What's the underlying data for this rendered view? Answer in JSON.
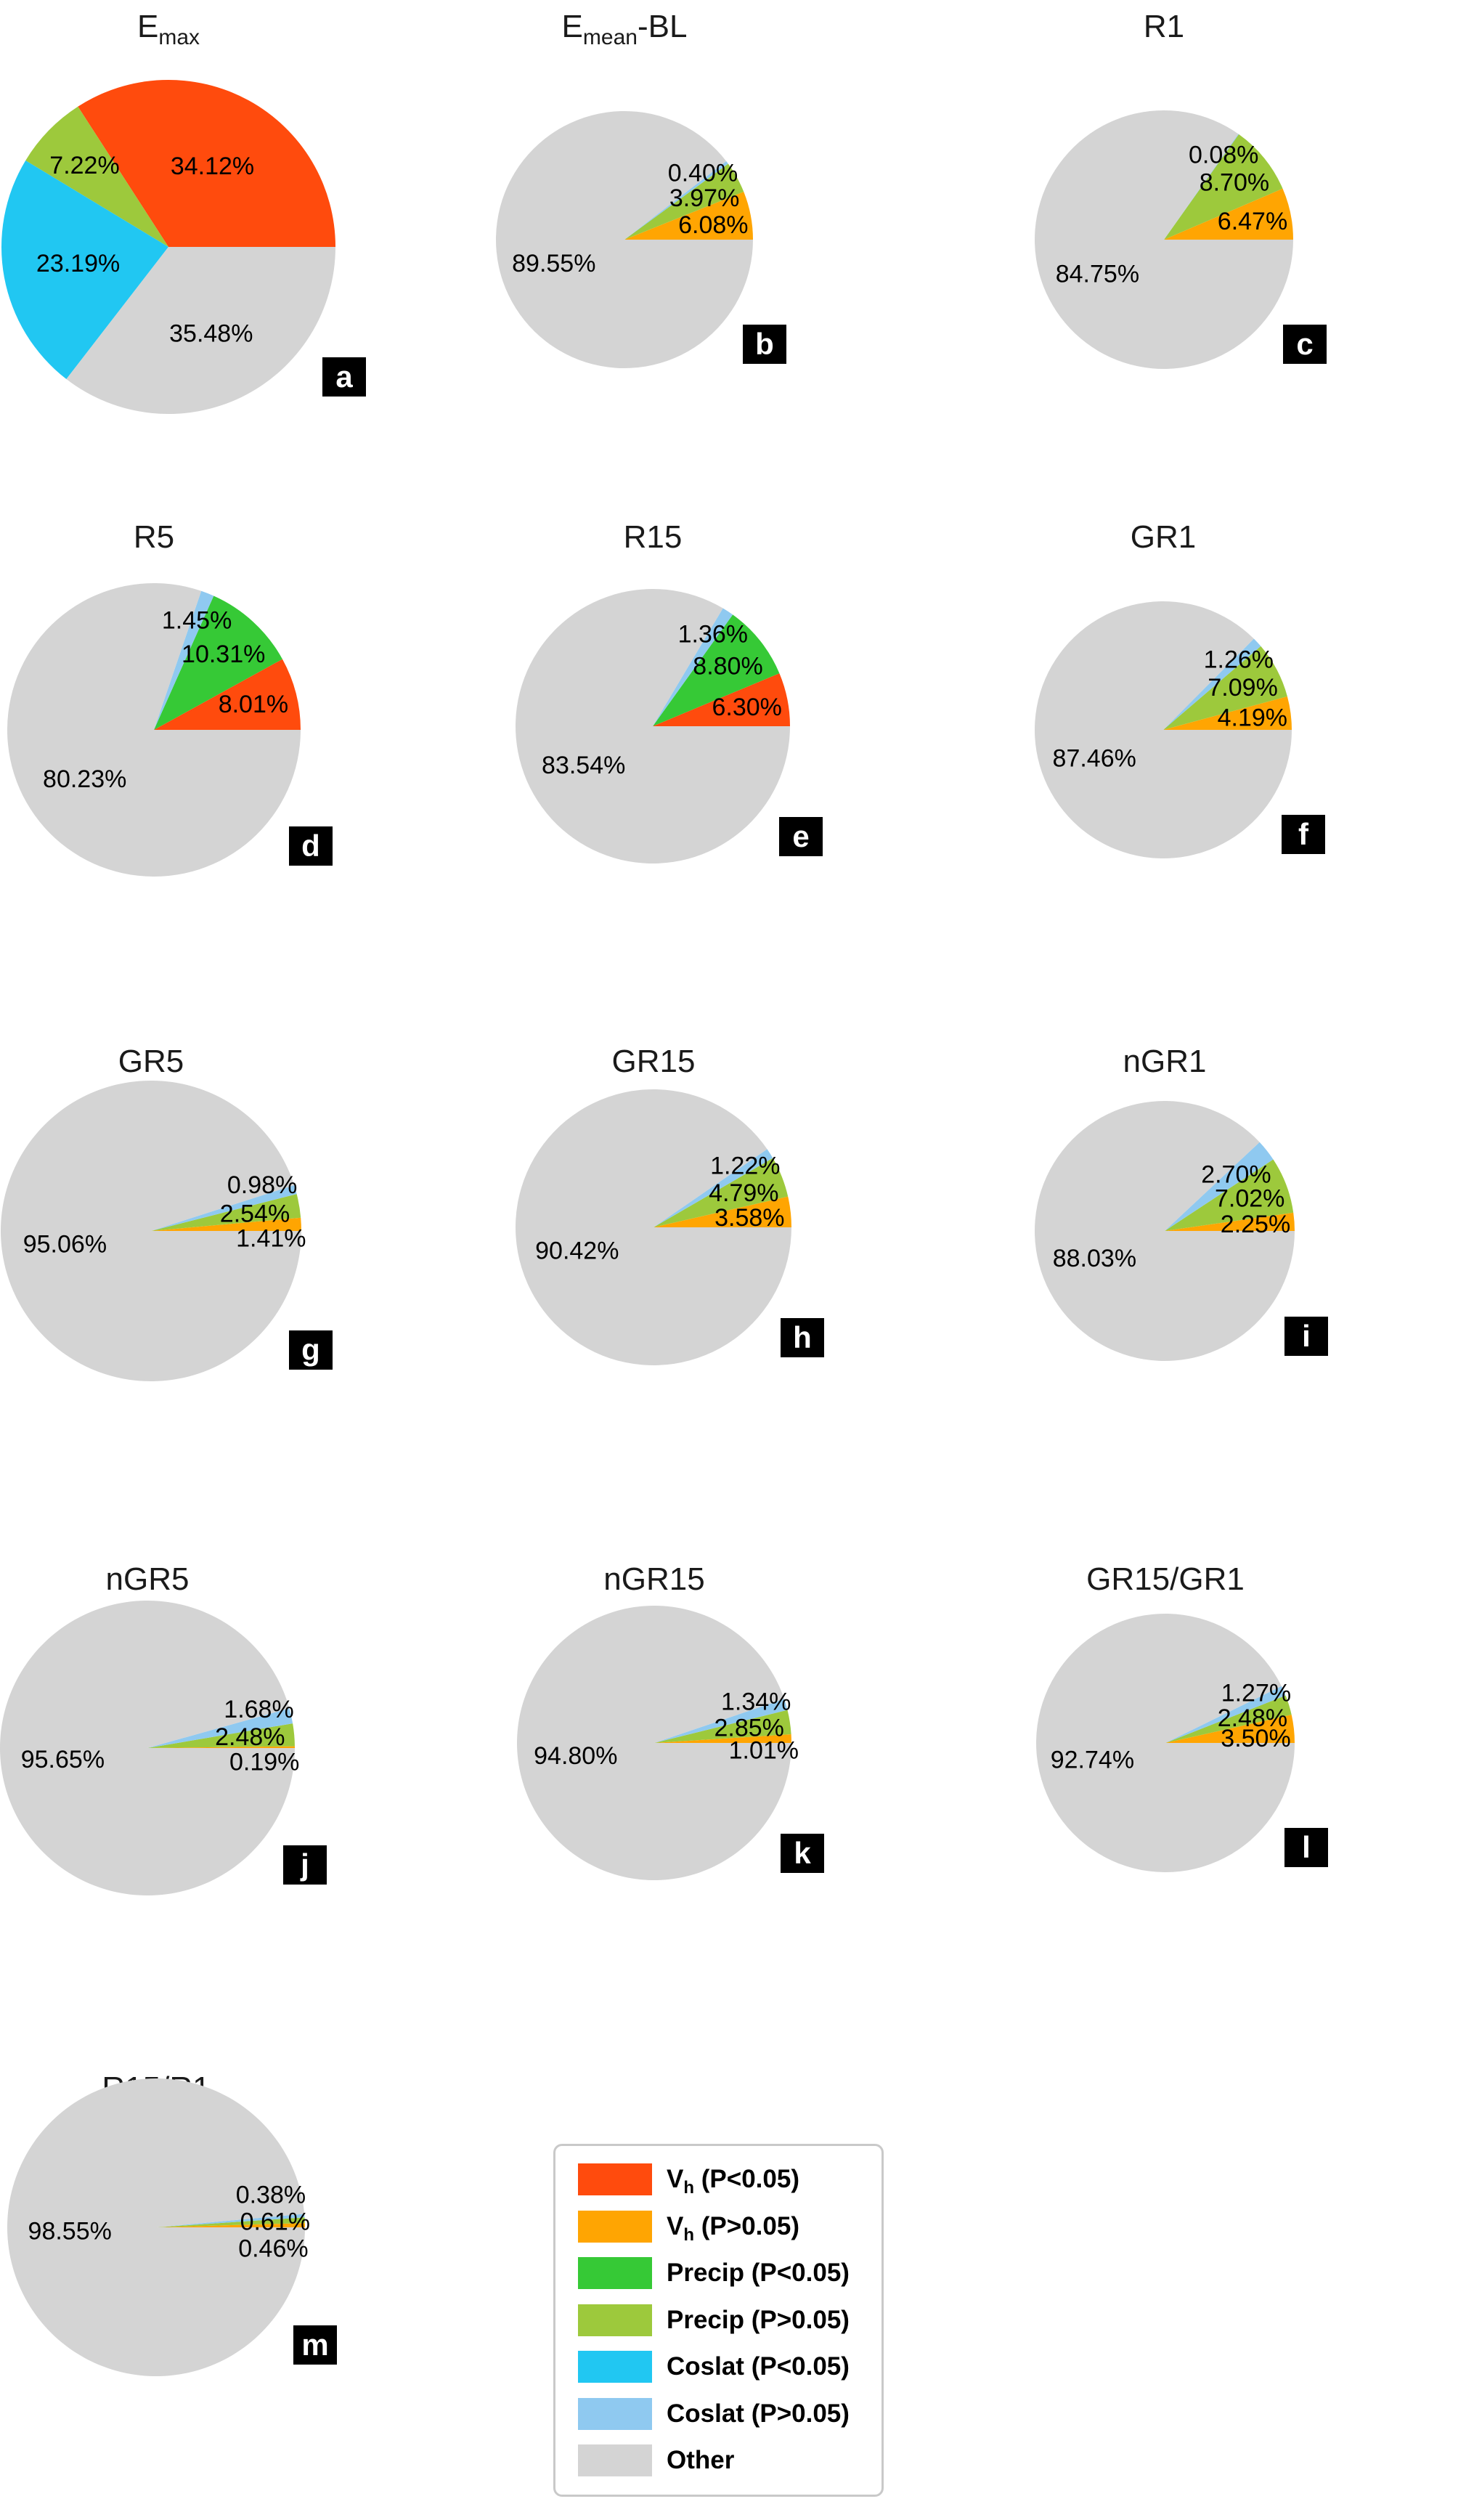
{
  "figure": {
    "background": "#ffffff"
  },
  "colors": {
    "vh_sig": "#FF4B0D",
    "vh_ns": "#FFA502",
    "precip_sig": "#36C936",
    "precip_ns": "#9DC93C",
    "coslat_sig": "#21C7F2",
    "coslat_ns": "#8FC9F0",
    "other": "#D4D4D4"
  },
  "legend": {
    "items": [
      {
        "category": "vh_sig",
        "label_parts": [
          {
            "t": "V"
          },
          {
            "t": "h",
            "sub": true
          },
          {
            "t": " (P<0.05)"
          }
        ]
      },
      {
        "category": "vh_ns",
        "label_parts": [
          {
            "t": "V"
          },
          {
            "t": "h",
            "sub": true
          },
          {
            "t": " (P>0.05)"
          }
        ]
      },
      {
        "category": "precip_sig",
        "label_parts": [
          {
            "t": "Precip (P<0.05)"
          }
        ]
      },
      {
        "category": "precip_ns",
        "label_parts": [
          {
            "t": "Precip (P>0.05)"
          }
        ]
      },
      {
        "category": "coslat_sig",
        "label_parts": [
          {
            "t": "Coslat (P<0.05)"
          }
        ]
      },
      {
        "category": "coslat_ns",
        "label_parts": [
          {
            "t": "Coslat (P>0.05)"
          }
        ]
      },
      {
        "category": "other",
        "label_parts": [
          {
            "t": "Other"
          }
        ]
      }
    ]
  },
  "chart_data": [
    {
      "type": "pie",
      "id": "a",
      "badge": "a",
      "title": "Emax",
      "title_parts": [
        {
          "t": "E"
        },
        {
          "t": "max",
          "sub": true
        }
      ],
      "slices": [
        {
          "category": "vh_sig",
          "value": 34.12
        },
        {
          "category": "precip_ns",
          "value": 7.22
        },
        {
          "category": "coslat_sig",
          "value": 23.19
        },
        {
          "category": "other",
          "value": 35.48
        }
      ]
    },
    {
      "type": "pie",
      "id": "b",
      "badge": "b",
      "title": "Emean-BL",
      "title_parts": [
        {
          "t": "E"
        },
        {
          "t": "mean",
          "sub": true
        },
        {
          "t": "-BL"
        }
      ],
      "slices": [
        {
          "category": "vh_ns",
          "value": 6.08
        },
        {
          "category": "precip_ns",
          "value": 3.97
        },
        {
          "category": "coslat_ns",
          "value": 0.4
        },
        {
          "category": "other",
          "value": 89.55
        }
      ]
    },
    {
      "type": "pie",
      "id": "c",
      "badge": "c",
      "title": "R1",
      "title_parts": [
        {
          "t": "R1"
        }
      ],
      "slices": [
        {
          "category": "vh_ns",
          "value": 6.47
        },
        {
          "category": "precip_ns",
          "value": 8.7
        },
        {
          "category": "coslat_ns",
          "value": 0.08
        },
        {
          "category": "other",
          "value": 84.75
        }
      ]
    },
    {
      "type": "pie",
      "id": "d",
      "badge": "d",
      "title": "R5",
      "title_parts": [
        {
          "t": "R5"
        }
      ],
      "slices": [
        {
          "category": "vh_sig",
          "value": 8.01
        },
        {
          "category": "precip_sig",
          "value": 10.31
        },
        {
          "category": "coslat_ns",
          "value": 1.45
        },
        {
          "category": "other",
          "value": 80.23
        }
      ]
    },
    {
      "type": "pie",
      "id": "e",
      "badge": "e",
      "title": "R15",
      "title_parts": [
        {
          "t": "R15"
        }
      ],
      "slices": [
        {
          "category": "vh_sig",
          "value": 6.3
        },
        {
          "category": "precip_sig",
          "value": 8.8
        },
        {
          "category": "coslat_ns",
          "value": 1.36
        },
        {
          "category": "other",
          "value": 83.54
        }
      ]
    },
    {
      "type": "pie",
      "id": "f",
      "badge": "f",
      "title": "GR1",
      "title_parts": [
        {
          "t": "GR1"
        }
      ],
      "slices": [
        {
          "category": "vh_ns",
          "value": 4.19
        },
        {
          "category": "precip_ns",
          "value": 7.09
        },
        {
          "category": "coslat_ns",
          "value": 1.26
        },
        {
          "category": "other",
          "value": 87.46
        }
      ]
    },
    {
      "type": "pie",
      "id": "g",
      "badge": "g",
      "title": "GR5",
      "title_parts": [
        {
          "t": "GR5"
        }
      ],
      "slices": [
        {
          "category": "vh_ns",
          "value": 1.41
        },
        {
          "category": "precip_ns",
          "value": 2.54
        },
        {
          "category": "coslat_ns",
          "value": 0.98
        },
        {
          "category": "other",
          "value": 95.06
        }
      ]
    },
    {
      "type": "pie",
      "id": "h",
      "badge": "h",
      "title": "GR15",
      "title_parts": [
        {
          "t": "GR15"
        }
      ],
      "slices": [
        {
          "category": "vh_ns",
          "value": 3.58
        },
        {
          "category": "precip_ns",
          "value": 4.79
        },
        {
          "category": "coslat_ns",
          "value": 1.22
        },
        {
          "category": "other",
          "value": 90.42
        }
      ]
    },
    {
      "type": "pie",
      "id": "i",
      "badge": "i",
      "title": "nGR1",
      "title_parts": [
        {
          "t": "nGR1"
        }
      ],
      "slices": [
        {
          "category": "vh_ns",
          "value": 2.25
        },
        {
          "category": "precip_ns",
          "value": 7.02
        },
        {
          "category": "coslat_ns",
          "value": 2.7
        },
        {
          "category": "other",
          "value": 88.03
        }
      ]
    },
    {
      "type": "pie",
      "id": "j",
      "badge": "j",
      "title": "nGR5",
      "title_parts": [
        {
          "t": "nGR5"
        }
      ],
      "slices": [
        {
          "category": "vh_ns",
          "value": 0.19
        },
        {
          "category": "precip_ns",
          "value": 2.48
        },
        {
          "category": "coslat_ns",
          "value": 1.68
        },
        {
          "category": "other",
          "value": 95.65
        }
      ]
    },
    {
      "type": "pie",
      "id": "k",
      "badge": "k",
      "title": "nGR15",
      "title_parts": [
        {
          "t": "nGR15"
        }
      ],
      "slices": [
        {
          "category": "vh_ns",
          "value": 1.01
        },
        {
          "category": "precip_ns",
          "value": 2.85
        },
        {
          "category": "coslat_ns",
          "value": 1.34
        },
        {
          "category": "other",
          "value": 94.8
        }
      ]
    },
    {
      "type": "pie",
      "id": "l",
      "badge": "l",
      "title": "GR15/GR1",
      "title_parts": [
        {
          "t": "GR15/GR1"
        }
      ],
      "slices": [
        {
          "category": "vh_ns",
          "value": 3.5
        },
        {
          "category": "precip_ns",
          "value": 2.48
        },
        {
          "category": "coslat_ns",
          "value": 1.27
        },
        {
          "category": "other",
          "value": 92.74
        }
      ]
    },
    {
      "type": "pie",
      "id": "m",
      "badge": "m",
      "title": "R15/R1",
      "title_parts": [
        {
          "t": "R15"
        },
        {
          "t": "/R1"
        }
      ],
      "slices": [
        {
          "category": "vh_ns",
          "value": 0.46
        },
        {
          "category": "precip_ns",
          "value": 0.61
        },
        {
          "category": "coslat_ns",
          "value": 0.38
        },
        {
          "category": "other",
          "value": 98.55
        }
      ]
    }
  ]
}
